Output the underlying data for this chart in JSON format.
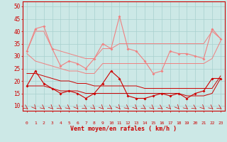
{
  "x": [
    0,
    1,
    2,
    3,
    4,
    5,
    6,
    7,
    8,
    9,
    10,
    11,
    12,
    13,
    14,
    15,
    16,
    17,
    18,
    19,
    20,
    21,
    22,
    23
  ],
  "gusts_obs": [
    32,
    41,
    42,
    33,
    26,
    28,
    27,
    25,
    29,
    35,
    33,
    46,
    33,
    32,
    28,
    23,
    24,
    32,
    31,
    31,
    30,
    29,
    41,
    37
  ],
  "gusts_hi": [
    32,
    40,
    40,
    33,
    32,
    31,
    30,
    29,
    29,
    33,
    33,
    35,
    35,
    35,
    35,
    35,
    35,
    35,
    35,
    35,
    35,
    35,
    40,
    37
  ],
  "gusts_lo": [
    31,
    28,
    27,
    26,
    25,
    24,
    24,
    23,
    23,
    27,
    27,
    27,
    27,
    27,
    27,
    27,
    27,
    27,
    27,
    27,
    27,
    27,
    29,
    36
  ],
  "wind_obs": [
    18,
    24,
    19,
    17,
    15,
    16,
    15,
    13,
    15,
    19,
    24,
    21,
    14,
    13,
    13,
    14,
    15,
    14,
    15,
    13,
    15,
    16,
    21,
    21
  ],
  "wind_hi": [
    23,
    23,
    22,
    21,
    20,
    20,
    19,
    19,
    18,
    18,
    18,
    18,
    18,
    18,
    17,
    17,
    17,
    17,
    17,
    17,
    17,
    17,
    17,
    22
  ],
  "wind_lo": [
    18,
    18,
    18,
    17,
    16,
    16,
    16,
    15,
    15,
    15,
    15,
    15,
    15,
    15,
    15,
    15,
    15,
    15,
    15,
    14,
    14,
    14,
    15,
    21
  ],
  "xlabel": "Vent moyen/en rafales ( km/h )",
  "ylim_min": 8,
  "ylim_max": 52,
  "yticks": [
    10,
    15,
    20,
    25,
    30,
    35,
    40,
    45,
    50
  ],
  "bg_color": "#cce8e6",
  "grid_color": "#a8d0ce",
  "light_pink": "#f08080",
  "dark_red": "#cc0000",
  "arrow_angles": [
    -45,
    -60,
    -50,
    -55,
    -45,
    -50,
    -60,
    -45,
    -50,
    -55,
    -45,
    -60,
    -50,
    -55,
    -45,
    -50,
    -45,
    -55,
    -60,
    -50,
    -45,
    -55,
    -50,
    -45
  ]
}
